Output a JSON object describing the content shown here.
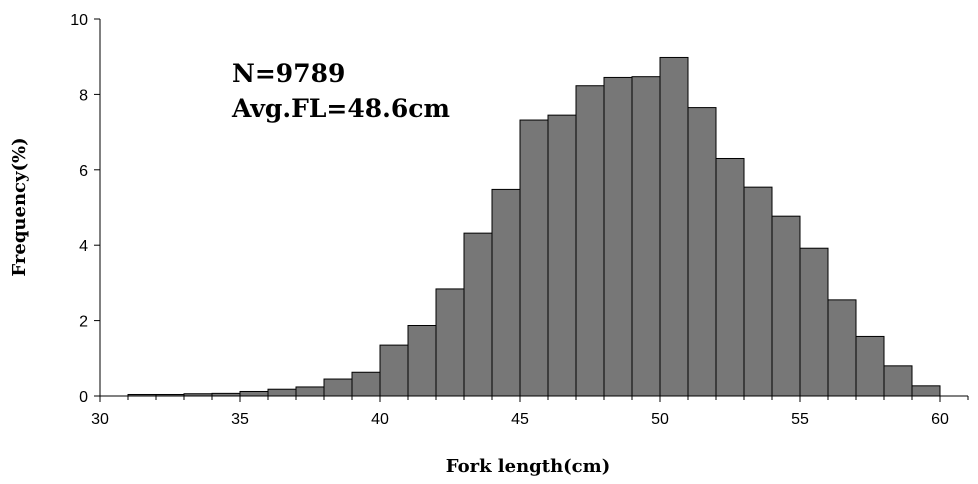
{
  "chart_data": {
    "type": "bar",
    "xlabel": "Fork length(cm)",
    "ylabel": "Frequency(%)",
    "xlim": [
      30,
      61
    ],
    "ylim": [
      0,
      10
    ],
    "xticks": [
      30,
      35,
      40,
      45,
      50,
      55,
      60
    ],
    "yticks": [
      0,
      2,
      4,
      6,
      8,
      10
    ],
    "bin_width": 1,
    "bin_starts": [
      31,
      32,
      33,
      34,
      35,
      36,
      37,
      38,
      39,
      40,
      41,
      42,
      43,
      44,
      45,
      46,
      47,
      48,
      49,
      50,
      51,
      52,
      53,
      54,
      55,
      56,
      57,
      58,
      59
    ],
    "values": [
      0.04,
      0.04,
      0.06,
      0.07,
      0.12,
      0.18,
      0.24,
      0.45,
      0.63,
      1.35,
      1.87,
      2.84,
      4.32,
      5.48,
      7.32,
      7.45,
      8.23,
      8.45,
      8.47,
      8.98,
      7.65,
      6.3,
      5.54,
      4.77,
      3.92,
      2.55,
      1.58,
      0.8,
      0.27
    ],
    "color": "#777777",
    "annotations": [
      "N=9789",
      "Avg.FL=48.6cm"
    ],
    "grid": false,
    "legend": "none"
  }
}
